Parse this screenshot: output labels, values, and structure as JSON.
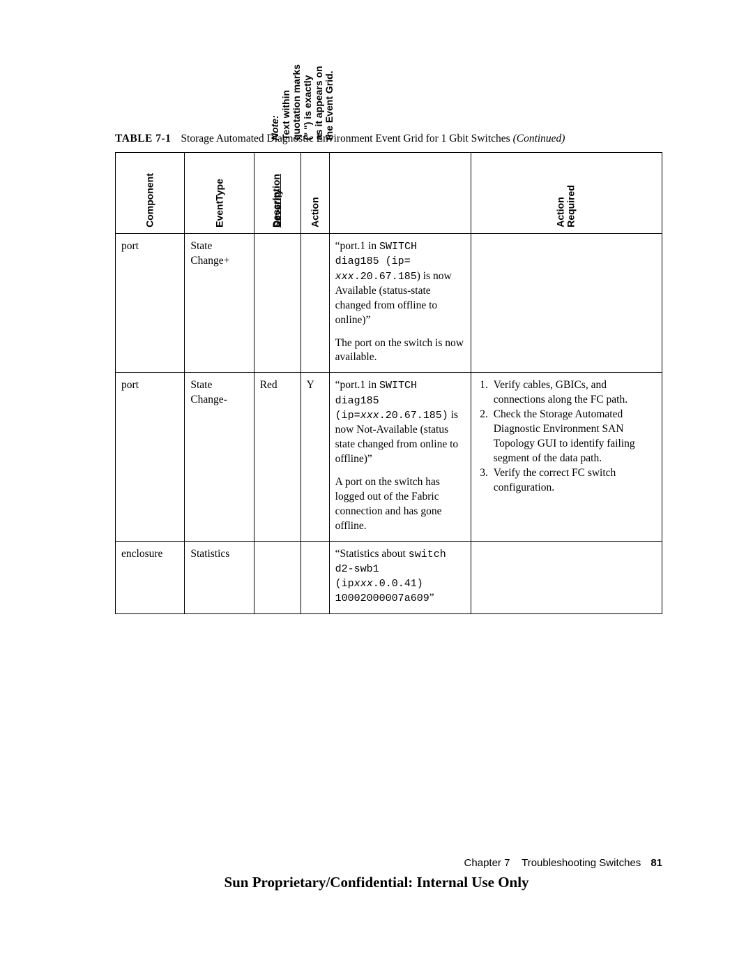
{
  "caption": {
    "label": "TABLE 7-1",
    "text": "Storage Automated Diagnostic Environment Event Grid for 1 Gbit Switches ",
    "suffix_italic": "(Continued)"
  },
  "headers": {
    "component": "Component",
    "eventType": "EventType",
    "severity": "Severity",
    "action": "Action",
    "description": "Description",
    "note_label": "Note:",
    "note_text": "Text within quotation marks (\" \") is exactly as it appears on the Event Grid.",
    "action_required": "Action Required"
  },
  "rows": [
    {
      "component": "port",
      "eventType": "State Change+",
      "severity": "",
      "action": "",
      "desc_quoted_pre": "“port.1 in ",
      "desc_mono1": "SWITCH diag185 (ip= ",
      "desc_mono_ip_italic": "xxx",
      "desc_mono_ip_rest": ".20.67.185",
      "desc_after_mono": ") is now Available (status-state changed from offline to online)”",
      "desc_para2": "The port on the switch is now available.",
      "req": []
    },
    {
      "component": "port",
      "eventType": "State Change-",
      "severity": "Red",
      "action": "Y",
      "desc_quoted_pre": "“port.1 in ",
      "desc_mono1": "SWITCH diag185 (ip=",
      "desc_mono_ip_italic": "xxx",
      "desc_mono_ip_rest": ".20.67.185)",
      "desc_after_mono": " is now Not-Available (status state changed from online to offline)”",
      "desc_para2": "A port on the switch has logged out of the Fabric connection and has gone offline.",
      "req": [
        "Verify cables, GBICs, and connections along the FC path.",
        "Check the Storage Automated Diagnostic Environment SAN Topology GUI to identify failing segment of the data path.",
        "Verify the correct FC switch configuration."
      ]
    },
    {
      "component": "enclosure",
      "eventType": "Statistics",
      "severity": "",
      "action": "",
      "desc_quoted_pre": "“Statistics about ",
      "desc_mono1": "switch d2-swb1 (ip",
      "desc_mono_ip_italic": "xxx",
      "desc_mono_ip_rest": ".0.0.41) 10002000007a609",
      "desc_after_mono": "”",
      "desc_para2": "",
      "req": []
    }
  ],
  "footer": {
    "chapter": "Chapter 7",
    "title": "Troubleshooting Switches",
    "page": "81"
  },
  "confidential": "Sun Proprietary/Confidential: Internal Use Only"
}
